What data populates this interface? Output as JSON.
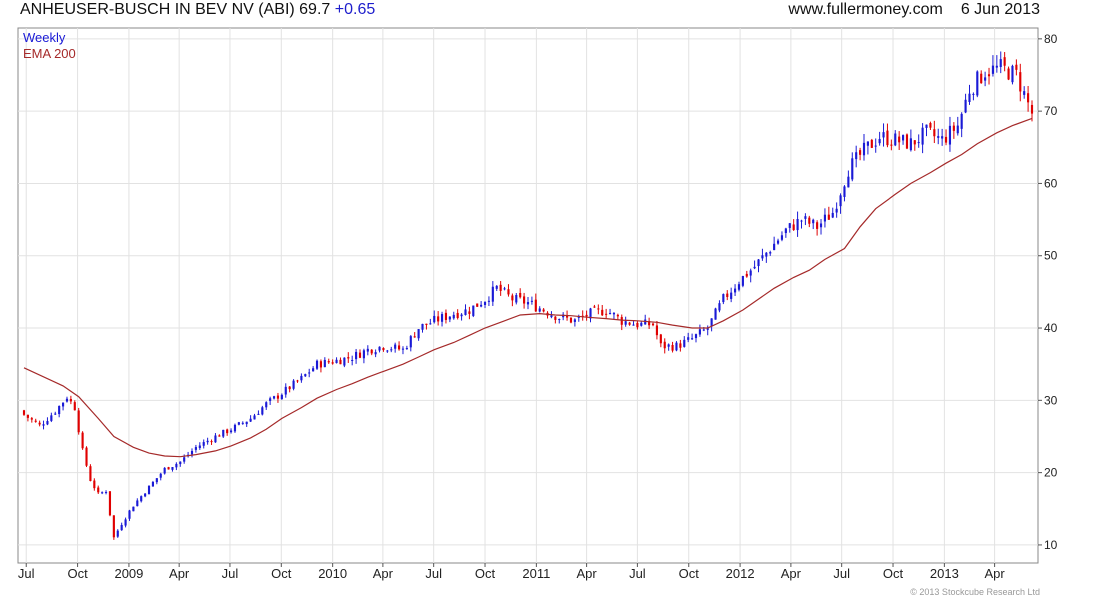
{
  "header": {
    "title": "ANHEUSER-BUSCH IN BEV NV (ABI) 69.7",
    "change": "+0.65",
    "source": "www.fullermoney.com",
    "date": "6 Jun 2013"
  },
  "footer": {
    "copyright": "© 2013 Stockcube Research Ltd"
  },
  "colors": {
    "up": "#1a1ad6",
    "down": "#e00000",
    "ema": "#a52a2a",
    "grid": "#e2e2e2",
    "frame": "#888888",
    "weekly_label": "#1a1ad6",
    "ema_label": "#a52a2a"
  },
  "chart_data": {
    "type": "candlestick",
    "period": "Weekly",
    "legend": [
      "Weekly",
      "EMA 200"
    ],
    "legend_position": "top-left",
    "grid": true,
    "y_axis_side": "right",
    "ylim": [
      7.5,
      81.5
    ],
    "yticks": [
      10,
      20,
      30,
      40,
      50,
      60,
      70,
      80
    ],
    "xlim": [
      "2008-06-27",
      "2013-06-07"
    ],
    "xticks": [
      {
        "label": "Jul",
        "date": "2008-07-01"
      },
      {
        "label": "Oct",
        "date": "2008-10-01"
      },
      {
        "label": "2009",
        "date": "2009-01-01"
      },
      {
        "label": "Apr",
        "date": "2009-04-01"
      },
      {
        "label": "Jul",
        "date": "2009-07-01"
      },
      {
        "label": "Oct",
        "date": "2009-10-01"
      },
      {
        "label": "2010",
        "date": "2010-01-01"
      },
      {
        "label": "Apr",
        "date": "2010-04-01"
      },
      {
        "label": "Jul",
        "date": "2010-07-01"
      },
      {
        "label": "Oct",
        "date": "2010-10-01"
      },
      {
        "label": "2011",
        "date": "2011-01-01"
      },
      {
        "label": "Apr",
        "date": "2011-04-01"
      },
      {
        "label": "Jul",
        "date": "2011-07-01"
      },
      {
        "label": "Oct",
        "date": "2011-10-01"
      },
      {
        "label": "2012",
        "date": "2012-01-01"
      },
      {
        "label": "Apr",
        "date": "2012-04-01"
      },
      {
        "label": "Jul",
        "date": "2012-07-01"
      },
      {
        "label": "Oct",
        "date": "2012-10-01"
      },
      {
        "label": "2013",
        "date": "2013-01-01"
      },
      {
        "label": "Apr",
        "date": "2013-04-01"
      }
    ],
    "close_path": [
      [
        "2008-06-27",
        28
      ],
      [
        "2008-07-25",
        26.5
      ],
      [
        "2008-08-22",
        28.5
      ],
      [
        "2008-09-12",
        30.5
      ],
      [
        "2008-09-26",
        29
      ],
      [
        "2008-10-10",
        23
      ],
      [
        "2008-10-24",
        19
      ],
      [
        "2008-11-07",
        17
      ],
      [
        "2008-11-21",
        17.5
      ],
      [
        "2008-12-05",
        11
      ],
      [
        "2008-12-19",
        13
      ],
      [
        "2009-01-09",
        15.5
      ],
      [
        "2009-02-06",
        18
      ],
      [
        "2009-03-06",
        20.5
      ],
      [
        "2009-04-03",
        21.5
      ],
      [
        "2009-05-01",
        23.5
      ],
      [
        "2009-06-05",
        25
      ],
      [
        "2009-07-03",
        26
      ],
      [
        "2009-08-07",
        27.5
      ],
      [
        "2009-09-04",
        29.5
      ],
      [
        "2009-10-02",
        31
      ],
      [
        "2009-11-06",
        33
      ],
      [
        "2009-12-04",
        35
      ],
      [
        "2010-01-08",
        35.5
      ],
      [
        "2010-02-05",
        36
      ],
      [
        "2010-03-05",
        37
      ],
      [
        "2010-04-02",
        37.5
      ],
      [
        "2010-05-07",
        37
      ],
      [
        "2010-06-04",
        40
      ],
      [
        "2010-07-02",
        41
      ],
      [
        "2010-08-06",
        42
      ],
      [
        "2010-09-03",
        42.5
      ],
      [
        "2010-10-01",
        44
      ],
      [
        "2010-10-22",
        45.5
      ],
      [
        "2010-11-19",
        44
      ],
      [
        "2010-12-17",
        43.5
      ],
      [
        "2011-01-14",
        42.5
      ],
      [
        "2011-02-11",
        41.5
      ],
      [
        "2011-03-11",
        41
      ],
      [
        "2011-04-08",
        42
      ],
      [
        "2011-05-06",
        42.5
      ],
      [
        "2011-06-03",
        41
      ],
      [
        "2011-07-01",
        40.5
      ],
      [
        "2011-07-29",
        40.5
      ],
      [
        "2011-08-12",
        37.5
      ],
      [
        "2011-09-09",
        37.5
      ],
      [
        "2011-10-07",
        38.5
      ],
      [
        "2011-11-04",
        40
      ],
      [
        "2011-12-02",
        44
      ],
      [
        "2011-12-30",
        46.5
      ],
      [
        "2012-01-27",
        48.5
      ],
      [
        "2012-02-24",
        51
      ],
      [
        "2012-03-23",
        53.5
      ],
      [
        "2012-04-20",
        55
      ],
      [
        "2012-05-18",
        54
      ],
      [
        "2012-06-15",
        56
      ],
      [
        "2012-07-13",
        62
      ],
      [
        "2012-08-10",
        64.5
      ],
      [
        "2012-09-07",
        66.5
      ],
      [
        "2012-10-05",
        66
      ],
      [
        "2012-11-02",
        65.5
      ],
      [
        "2012-11-30",
        67
      ],
      [
        "2012-12-28",
        66
      ],
      [
        "2013-01-25",
        68
      ],
      [
        "2013-02-15",
        73
      ],
      [
        "2013-03-15",
        75.5
      ],
      [
        "2013-04-12",
        76
      ],
      [
        "2013-05-10",
        75
      ],
      [
        "2013-06-07",
        69.7
      ]
    ],
    "ema_200": [
      [
        "2008-06-27",
        34.5
      ],
      [
        "2008-09-05",
        32
      ],
      [
        "2008-10-03",
        30.5
      ],
      [
        "2008-11-07",
        27.5
      ],
      [
        "2008-12-05",
        25
      ],
      [
        "2009-01-09",
        23.5
      ],
      [
        "2009-02-06",
        22.7
      ],
      [
        "2009-03-06",
        22.3
      ],
      [
        "2009-04-03",
        22.2
      ],
      [
        "2009-05-01",
        22.5
      ],
      [
        "2009-06-05",
        23
      ],
      [
        "2009-07-03",
        23.7
      ],
      [
        "2009-08-07",
        24.8
      ],
      [
        "2009-09-04",
        26
      ],
      [
        "2009-10-02",
        27.5
      ],
      [
        "2009-11-06",
        29
      ],
      [
        "2009-12-04",
        30.3
      ],
      [
        "2010-01-08",
        31.5
      ],
      [
        "2010-02-05",
        32.3
      ],
      [
        "2010-03-05",
        33.2
      ],
      [
        "2010-04-02",
        34
      ],
      [
        "2010-05-07",
        35
      ],
      [
        "2010-06-04",
        36
      ],
      [
        "2010-07-02",
        37
      ],
      [
        "2010-08-06",
        38
      ],
      [
        "2010-09-03",
        39
      ],
      [
        "2010-10-01",
        40
      ],
      [
        "2010-11-05",
        41
      ],
      [
        "2010-12-03",
        41.8
      ],
      [
        "2011-01-07",
        42
      ],
      [
        "2011-02-04",
        41.8
      ],
      [
        "2011-03-04",
        41.7
      ],
      [
        "2011-04-01",
        41.5
      ],
      [
        "2011-05-06",
        41.3
      ],
      [
        "2011-06-03",
        41.1
      ],
      [
        "2011-07-01",
        41
      ],
      [
        "2011-08-05",
        40.8
      ],
      [
        "2011-09-02",
        40.4
      ],
      [
        "2011-10-07",
        40
      ],
      [
        "2011-11-04",
        40
      ],
      [
        "2011-12-02",
        41
      ],
      [
        "2012-01-06",
        42.5
      ],
      [
        "2012-02-03",
        44
      ],
      [
        "2012-03-02",
        45.5
      ],
      [
        "2012-04-06",
        47
      ],
      [
        "2012-05-04",
        48
      ],
      [
        "2012-06-01",
        49.5
      ],
      [
        "2012-07-06",
        51
      ],
      [
        "2012-08-03",
        54
      ],
      [
        "2012-08-31",
        56.5
      ],
      [
        "2012-10-05",
        58.5
      ],
      [
        "2012-11-02",
        60
      ],
      [
        "2012-12-07",
        61.5
      ],
      [
        "2013-01-04",
        62.8
      ],
      [
        "2013-02-01",
        64
      ],
      [
        "2013-03-01",
        65.5
      ],
      [
        "2013-04-05",
        67
      ],
      [
        "2013-05-03",
        68
      ],
      [
        "2013-06-07",
        69
      ]
    ]
  }
}
